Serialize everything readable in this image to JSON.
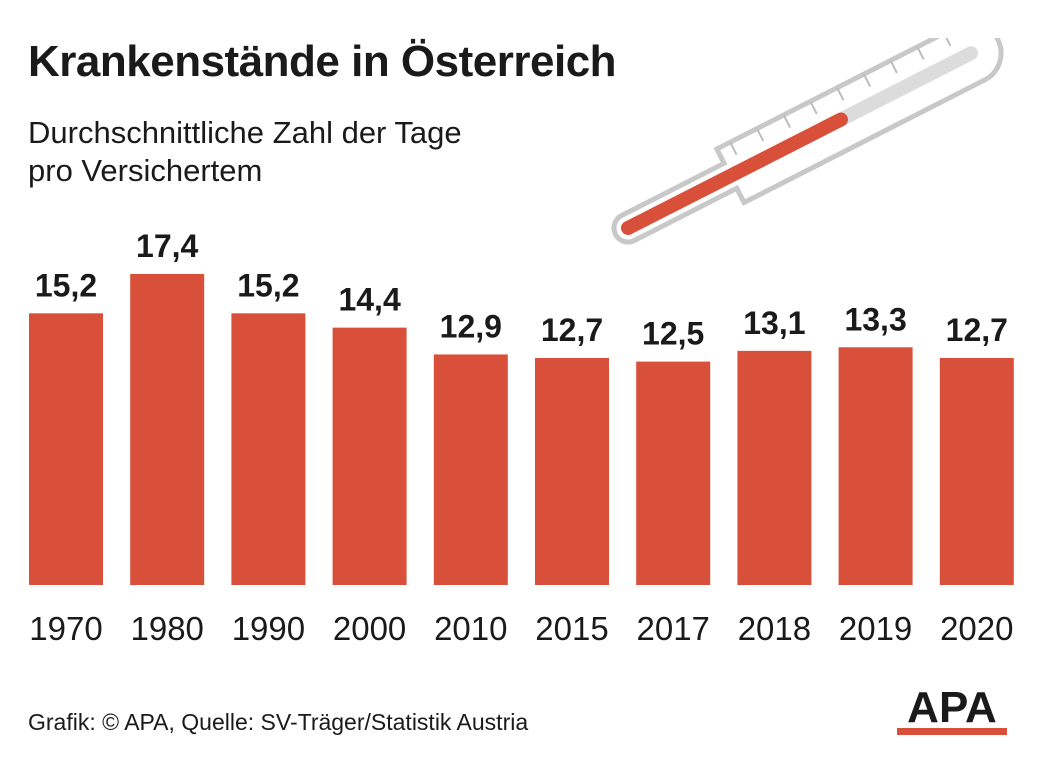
{
  "title": "Krankenstände in Österreich",
  "subtitle_line1": "Durchschnittliche Zahl der Tage",
  "subtitle_line2": "pro Versichertem",
  "footer": "Grafik: © APA, Quelle: SV-Träger/Statistik Austria",
  "logo_text": "APA",
  "colors": {
    "bar": "#d9503a",
    "text": "#1a1a1a",
    "thermo_fill": "#d9503a",
    "thermo_empty": "#dcdcdc"
  },
  "decoration": {
    "thermometer_icon": "thermometer-icon",
    "thermometer_fill_fraction": 0.62
  },
  "chart_data": {
    "type": "bar",
    "categories": [
      "1970",
      "1980",
      "1990",
      "2000",
      "2010",
      "2015",
      "2017",
      "2018",
      "2019",
      "2020"
    ],
    "values": [
      15.2,
      17.4,
      15.2,
      14.4,
      12.9,
      12.7,
      12.5,
      13.1,
      13.3,
      12.7
    ],
    "value_labels": [
      "15,2",
      "17,4",
      "15,2",
      "14,4",
      "12,9",
      "12,7",
      "12,5",
      "13,1",
      "13,3",
      "12,7"
    ],
    "ylim": [
      0,
      17.4
    ],
    "grid": false,
    "legend": "none"
  }
}
